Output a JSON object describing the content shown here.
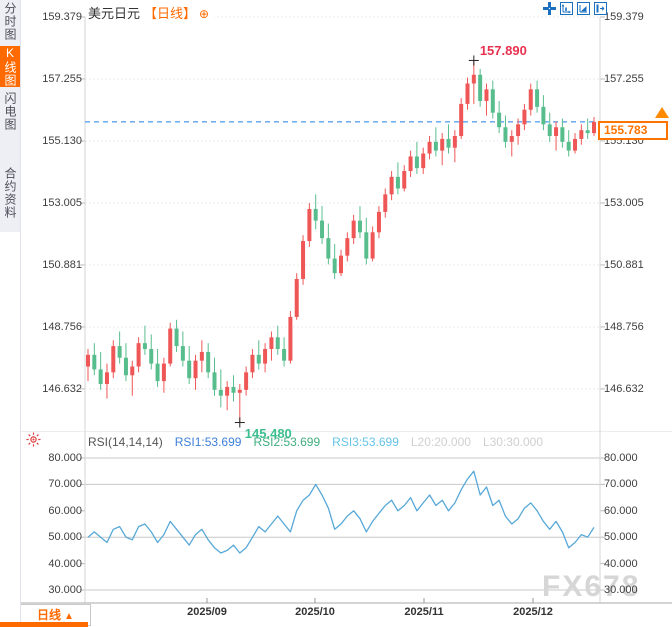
{
  "sidebar": {
    "items": [
      {
        "label": "分时图",
        "active": false
      },
      {
        "label": "K线图",
        "active": true
      },
      {
        "label": "闪电图",
        "active": false
      },
      {
        "label": "合约资料",
        "active": false
      }
    ]
  },
  "header": {
    "symbol": "美元日元",
    "period_tag": "【日线】",
    "add_icon": "⊕"
  },
  "toolbar": {
    "icons": [
      "pan",
      "zoom-in",
      "zoom-out",
      "exit"
    ]
  },
  "price_axis": {
    "labels": [
      "159.379",
      "157.255",
      "155.130",
      "153.005",
      "150.881",
      "148.756",
      "146.632"
    ],
    "current": "155.783"
  },
  "annotations": {
    "high": "157.890",
    "low": "145.480"
  },
  "rsi_pane": {
    "header": {
      "name": "RSI(14,14,14)",
      "rsi1": "RSI1:53.699",
      "rsi2": "RSI2:53.699",
      "rsi3": "RSI3:53.699",
      "l20": "L20:20.000",
      "l30": "L30:30.000"
    },
    "axis_labels": [
      "80.000",
      "70.000",
      "60.000",
      "50.000",
      "40.000",
      "30.000"
    ]
  },
  "x_axis": {
    "labels": [
      "2025/09",
      "2025/10",
      "2025/11",
      "2025/12"
    ]
  },
  "bottom_bar": {
    "period_label": "日线",
    "arrow_icon": "▲"
  },
  "watermark": "FX678",
  "colors": {
    "up": "#ef5656",
    "down": "#58bd8d",
    "high_label": "#e8304f",
    "low_label": "#3cbf8f",
    "dashed_line": "#1f80e8",
    "rsi_line": "#57a8d8",
    "accent": "#ff6a00",
    "grid": "#e4e4e4",
    "rsi_grid": "#c8c8c8"
  },
  "chart_data": {
    "type": "candlestick",
    "symbol": "美元日元",
    "interval": "日线",
    "price_ticks": [
      159.379,
      157.255,
      155.13,
      153.005,
      150.881,
      148.756,
      146.632
    ],
    "last_price": 155.783,
    "high_marker": {
      "value": 157.89,
      "candle_index": 61
    },
    "low_marker": {
      "value": 145.48,
      "candle_index": 24
    },
    "x_labels": [
      "2025/09",
      "2025/10",
      "2025/11",
      "2025/12"
    ],
    "candles": [
      [
        147.4,
        148.0,
        146.9,
        147.8
      ],
      [
        147.8,
        148.2,
        147.1,
        147.3
      ],
      [
        147.3,
        147.9,
        146.6,
        146.8
      ],
      [
        146.8,
        147.5,
        146.3,
        147.2
      ],
      [
        147.2,
        148.3,
        147.0,
        148.1
      ],
      [
        148.1,
        148.6,
        147.5,
        147.7
      ],
      [
        147.7,
        148.2,
        146.9,
        147.1
      ],
      [
        147.1,
        147.6,
        146.4,
        147.4
      ],
      [
        147.4,
        148.4,
        147.2,
        148.2
      ],
      [
        148.2,
        148.8,
        147.8,
        148.0
      ],
      [
        148.0,
        148.5,
        147.3,
        147.5
      ],
      [
        147.5,
        148.0,
        146.7,
        146.9
      ],
      [
        146.9,
        147.7,
        146.5,
        147.5
      ],
      [
        147.5,
        148.9,
        147.4,
        148.7
      ],
      [
        148.7,
        149.0,
        147.9,
        148.1
      ],
      [
        148.1,
        148.6,
        147.4,
        147.6
      ],
      [
        147.6,
        148.1,
        146.8,
        147.0
      ],
      [
        147.0,
        147.8,
        146.6,
        147.6
      ],
      [
        147.6,
        148.3,
        147.2,
        147.9
      ],
      [
        147.9,
        148.2,
        147.0,
        147.2
      ],
      [
        147.2,
        147.7,
        146.4,
        146.6
      ],
      [
        146.6,
        147.3,
        146.0,
        146.4
      ],
      [
        146.4,
        146.9,
        145.9,
        146.7
      ],
      [
        146.7,
        147.1,
        146.2,
        146.5
      ],
      [
        146.5,
        146.8,
        145.48,
        146.6
      ],
      [
        146.6,
        147.4,
        146.4,
        147.2
      ],
      [
        147.2,
        148.0,
        147.0,
        147.8
      ],
      [
        147.8,
        148.3,
        147.3,
        147.5
      ],
      [
        147.5,
        148.2,
        147.2,
        148.0
      ],
      [
        148.0,
        148.6,
        147.6,
        148.4
      ],
      [
        148.4,
        148.8,
        147.8,
        148.0
      ],
      [
        148.0,
        148.4,
        147.4,
        147.6
      ],
      [
        147.6,
        149.3,
        147.5,
        149.1
      ],
      [
        149.1,
        150.6,
        149.0,
        150.4
      ],
      [
        150.4,
        151.9,
        150.2,
        151.7
      ],
      [
        151.7,
        153.0,
        151.5,
        152.8
      ],
      [
        152.8,
        153.3,
        152.1,
        152.4
      ],
      [
        152.4,
        152.9,
        151.6,
        151.8
      ],
      [
        151.8,
        152.3,
        150.9,
        151.1
      ],
      [
        151.1,
        151.6,
        150.4,
        150.6
      ],
      [
        150.6,
        151.4,
        150.5,
        151.2
      ],
      [
        151.2,
        152.0,
        151.0,
        151.8
      ],
      [
        151.8,
        152.6,
        151.6,
        152.4
      ],
      [
        152.4,
        152.9,
        151.8,
        152.0
      ],
      [
        152.0,
        152.5,
        150.9,
        151.1
      ],
      [
        151.1,
        152.2,
        151.0,
        152.0
      ],
      [
        152.0,
        152.9,
        151.8,
        152.7
      ],
      [
        152.7,
        153.5,
        152.5,
        153.3
      ],
      [
        153.3,
        154.1,
        153.1,
        153.9
      ],
      [
        153.9,
        154.4,
        153.3,
        153.5
      ],
      [
        153.5,
        154.3,
        153.4,
        154.1
      ],
      [
        154.1,
        154.8,
        153.9,
        154.6
      ],
      [
        154.6,
        155.1,
        154.0,
        154.2
      ],
      [
        154.2,
        154.9,
        154.0,
        154.7
      ],
      [
        154.7,
        155.3,
        154.5,
        155.1
      ],
      [
        155.1,
        155.6,
        154.6,
        154.8
      ],
      [
        154.8,
        155.4,
        154.3,
        155.2
      ],
      [
        155.2,
        155.7,
        154.7,
        154.9
      ],
      [
        154.9,
        155.5,
        154.4,
        155.3
      ],
      [
        155.3,
        156.6,
        155.2,
        156.4
      ],
      [
        156.4,
        157.3,
        156.2,
        157.1
      ],
      [
        157.1,
        157.89,
        156.4,
        157.4
      ],
      [
        157.4,
        157.6,
        156.3,
        156.5
      ],
      [
        156.5,
        157.1,
        156.0,
        156.9
      ],
      [
        156.9,
        157.2,
        155.9,
        156.1
      ],
      [
        156.1,
        156.5,
        155.4,
        155.6
      ],
      [
        155.6,
        156.0,
        154.9,
        155.1
      ],
      [
        155.1,
        155.5,
        154.6,
        155.3
      ],
      [
        155.3,
        155.9,
        155.0,
        155.7
      ],
      [
        155.7,
        156.4,
        155.5,
        156.2
      ],
      [
        156.2,
        157.1,
        156.0,
        156.9
      ],
      [
        156.9,
        157.2,
        156.1,
        156.3
      ],
      [
        156.3,
        156.7,
        155.5,
        155.7
      ],
      [
        155.7,
        156.1,
        155.1,
        155.3
      ],
      [
        155.3,
        155.8,
        154.8,
        155.6
      ],
      [
        155.6,
        155.9,
        154.9,
        155.1
      ],
      [
        155.1,
        155.5,
        154.6,
        154.8
      ],
      [
        154.8,
        155.4,
        154.7,
        155.2
      ],
      [
        155.2,
        155.7,
        155.0,
        155.5
      ],
      [
        155.5,
        155.9,
        155.2,
        155.4
      ],
      [
        155.4,
        155.95,
        155.3,
        155.783
      ]
    ],
    "rsi": {
      "params": "14,14,14",
      "last": 53.699,
      "ticks": [
        80,
        70,
        60,
        50,
        40,
        30
      ],
      "gridlines": [
        80,
        70,
        50,
        30
      ],
      "levels": {
        "L20": 20,
        "L30": 30
      },
      "values": [
        50,
        52,
        50,
        48,
        53,
        54,
        50,
        49,
        54,
        55,
        52,
        48,
        51,
        56,
        53,
        50,
        47,
        51,
        53,
        49,
        46,
        44,
        45,
        47,
        44,
        46,
        50,
        54,
        52,
        55,
        58,
        55,
        52,
        60,
        64,
        66,
        70,
        66,
        61,
        53,
        55,
        58,
        60,
        57,
        52,
        56,
        59,
        62,
        64,
        60,
        62,
        65,
        60,
        63,
        66,
        62,
        64,
        60,
        63,
        68,
        72,
        75,
        66,
        69,
        62,
        64,
        58,
        55,
        57,
        61,
        63,
        60,
        56,
        53,
        56,
        52,
        46,
        48,
        51,
        50,
        53.7
      ]
    }
  }
}
